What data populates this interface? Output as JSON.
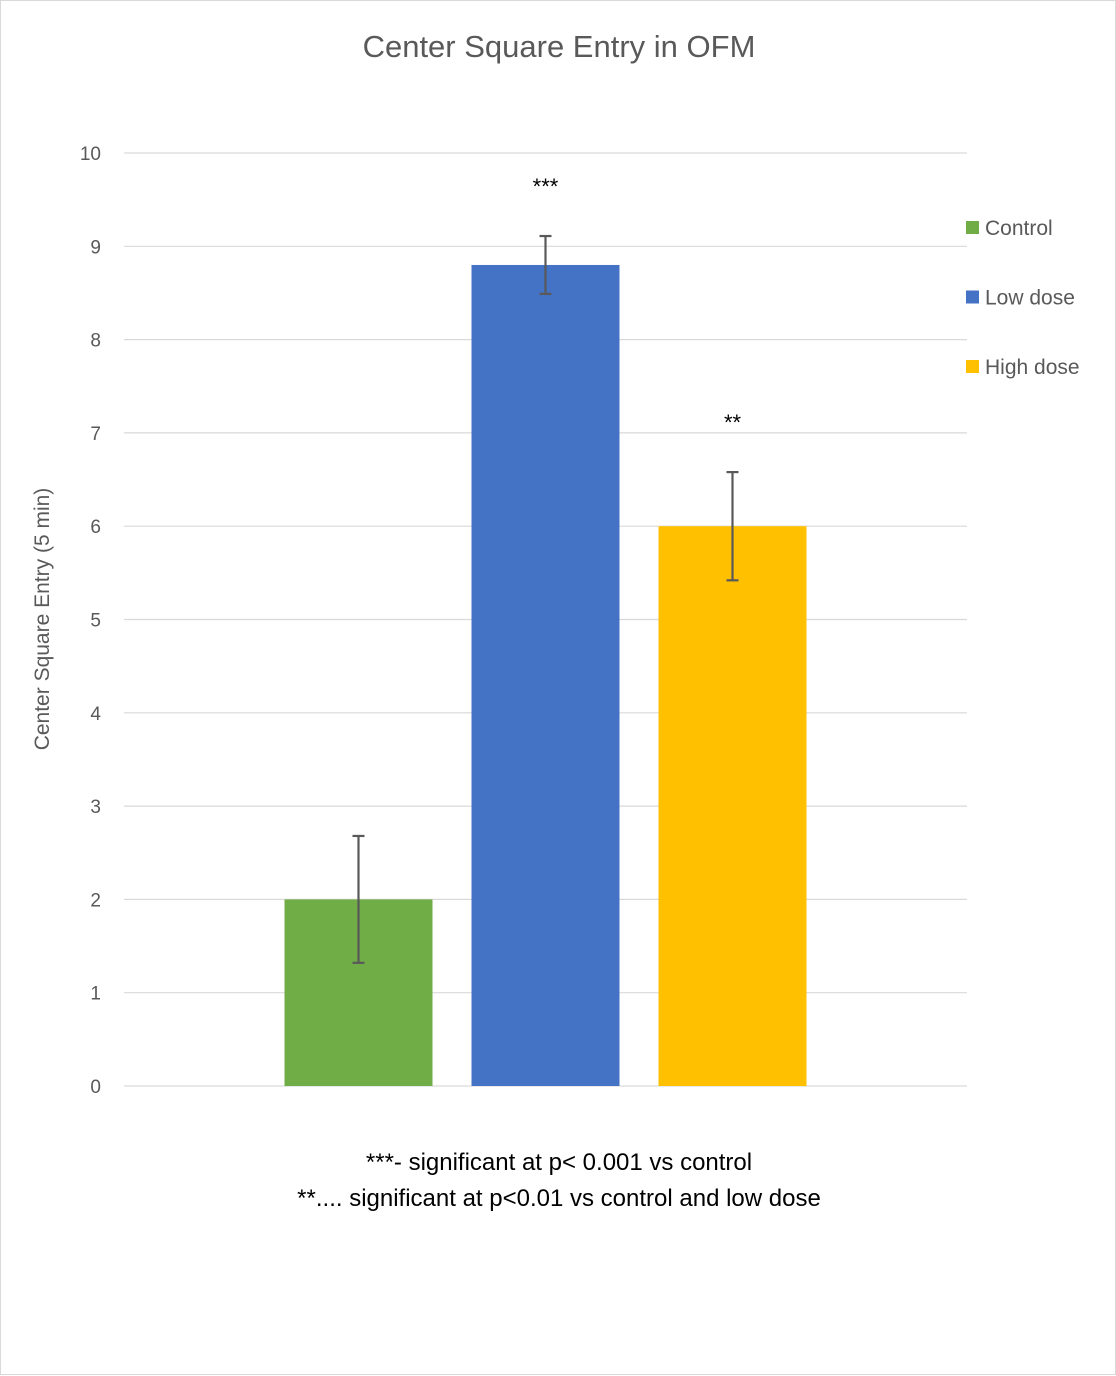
{
  "chart_data": {
    "type": "bar",
    "title": "Center Square Entry in OFM",
    "xlabel": "",
    "ylabel": "Center Square Entry (5 min)",
    "ylim": [
      0,
      10
    ],
    "yticks": [
      0,
      1,
      2,
      3,
      4,
      5,
      6,
      7,
      8,
      9,
      10
    ],
    "grid": true,
    "legend_position": "right",
    "series": [
      {
        "name": "Control",
        "value": 2.0,
        "error": 0.68,
        "color": "#70ad47",
        "significance": ""
      },
      {
        "name": "Low dose",
        "value": 8.8,
        "error": 0.31,
        "color": "#4472c4",
        "significance": "***"
      },
      {
        "name": "High dose",
        "value": 6.0,
        "error": 0.58,
        "color": "#ffc000",
        "significance": "**"
      }
    ],
    "notes": [
      "***-  significant at p< 0.001 vs control",
      "**.... significant at p<0.01 vs control and low dose"
    ]
  }
}
